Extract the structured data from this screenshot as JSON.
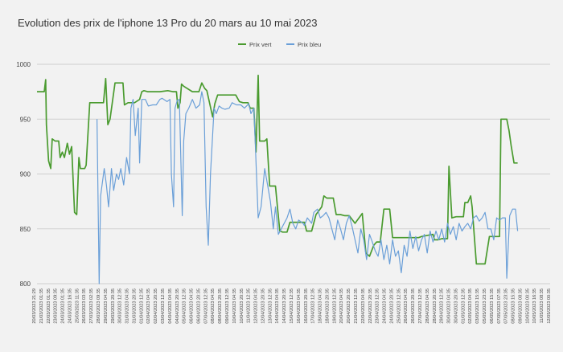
{
  "chart_data": {
    "type": "line",
    "title": "Evolution des prix de l'iphone 13 Pro du 20 mars au 10 mai 2023",
    "legend_position": "top-center",
    "grid": true,
    "ylim": [
      800,
      1000
    ],
    "y_ticks": [
      800,
      850,
      900,
      950,
      1000
    ],
    "x_ticks": [
      "20/03/2023 21:29",
      "21/03/2023 01:35",
      "22/03/2023 01:35",
      "23/03/2023 09:35",
      "24/03/2023 01:35",
      "24/03/2023 16:35",
      "25/03/2023 11:35",
      "26/03/2023 03:35",
      "27/03/2023 02:35",
      "28/03/2023 09:35",
      "29/03/2023 04:35",
      "29/03/2023 20:35",
      "30/03/2023 12:35",
      "31/03/2023 04:35",
      "31/03/2023 20:35",
      "01/04/2023 12:35",
      "02/04/2023 04:35",
      "02/04/2023 20:35",
      "03/04/2023 12:35",
      "04/04/2023 04:35",
      "04/04/2023 20:35",
      "05/04/2023 12:35",
      "06/04/2023 04:35",
      "06/04/2023 20:35",
      "07/04/2023 12:35",
      "08/04/2023 04:35",
      "08/04/2023 20:35",
      "09/04/2023 12:35",
      "10/04/2023 04:35",
      "10/04/2023 20:35",
      "11/04/2023 12:35",
      "12/04/2023 04:35",
      "12/04/2023 20:35",
      "13/04/2023 12:35",
      "14/04/2023 04:35",
      "14/04/2023 20:35",
      "15/04/2023 12:35",
      "16/04/2023 04:35",
      "16/04/2023 20:35",
      "17/04/2023 12:35",
      "18/04/2023 04:35",
      "18/04/2023 20:35",
      "19/04/2023 12:35",
      "20/04/2023 04:35",
      "20/04/2023 20:35",
      "21/04/2023 12:35",
      "22/04/2023 04:35",
      "22/04/2023 20:35",
      "23/04/2023 12:35",
      "24/04/2023 04:35",
      "24/04/2023 20:35",
      "25/04/2023 12:35",
      "26/04/2023 04:35",
      "26/04/2023 20:35",
      "27/04/2023 12:35",
      "28/04/2023 04:35",
      "28/04/2023 20:35",
      "29/04/2023 12:35",
      "30/04/2023 04:35",
      "30/04/2023 20:35",
      "01/05/2023 12:35",
      "02/05/2023 04:35",
      "03/05/2023 15:35",
      "05/05/2023 23:35",
      "06/05/2023 15:35",
      "07/05/2023 07:35",
      "07/05/2023 23:35",
      "08/05/2023 15:35",
      "09/05/2023 08:35",
      "10/05/2023 00:35",
      "10/05/2023 16:35",
      "11/05/2023 08:35",
      "12/05/2023 00:35"
    ],
    "x_count": 72,
    "series": [
      {
        "name": "Prix vert",
        "color": "#4a9b2f",
        "points": [
          [
            0,
            975
          ],
          [
            1,
            975
          ],
          [
            1.2,
            986
          ],
          [
            1.3,
            945
          ],
          [
            1.6,
            912
          ],
          [
            1.9,
            905
          ],
          [
            2.1,
            932
          ],
          [
            2.5,
            930
          ],
          [
            3,
            930
          ],
          [
            3.2,
            915
          ],
          [
            3.5,
            920
          ],
          [
            3.8,
            915
          ],
          [
            4.2,
            928
          ],
          [
            4.5,
            918
          ],
          [
            4.8,
            925
          ],
          [
            5.2,
            865
          ],
          [
            5.5,
            863
          ],
          [
            5.8,
            915
          ],
          [
            6.0,
            905
          ],
          [
            6.6,
            905
          ],
          [
            6.8,
            908
          ],
          [
            7.3,
            965
          ],
          [
            8.0,
            965
          ],
          [
            9.2,
            965
          ],
          [
            9.5,
            987
          ],
          [
            9.8,
            945
          ],
          [
            10.1,
            950
          ],
          [
            10.8,
            983
          ],
          [
            11.9,
            983
          ],
          [
            12.1,
            963
          ],
          [
            12.6,
            965
          ],
          [
            13.5,
            965
          ],
          [
            14.2,
            968
          ],
          [
            14.5,
            975
          ],
          [
            14.8,
            976
          ],
          [
            15.3,
            975
          ],
          [
            17.0,
            975
          ],
          [
            18.1,
            976
          ],
          [
            18.8,
            975
          ],
          [
            19.3,
            975
          ],
          [
            19.5,
            960
          ],
          [
            19.8,
            965
          ],
          [
            20.0,
            982
          ],
          [
            20.3,
            980
          ],
          [
            21.5,
            975
          ],
          [
            22.4,
            975
          ],
          [
            22.8,
            983
          ],
          [
            23.2,
            978
          ],
          [
            23.5,
            976
          ],
          [
            24.3,
            952
          ],
          [
            24.6,
            964
          ],
          [
            25.0,
            972
          ],
          [
            26.0,
            972
          ],
          [
            27.5,
            972
          ],
          [
            28.0,
            966
          ],
          [
            28.5,
            965
          ],
          [
            29.2,
            965
          ],
          [
            29.5,
            960
          ],
          [
            30.0,
            960
          ],
          [
            30.3,
            920
          ],
          [
            30.6,
            990
          ],
          [
            30.8,
            930
          ],
          [
            31.1,
            930
          ],
          [
            31.5,
            930
          ],
          [
            31.8,
            932
          ],
          [
            32.2,
            889
          ],
          [
            33.0,
            889
          ],
          [
            33.3,
            868
          ],
          [
            33.6,
            848
          ],
          [
            34.0,
            847
          ],
          [
            34.6,
            847
          ],
          [
            35.0,
            856
          ],
          [
            36.5,
            856
          ],
          [
            37.0,
            856
          ],
          [
            37.3,
            848
          ],
          [
            38.0,
            848
          ],
          [
            38.6,
            863
          ],
          [
            39.4,
            870
          ],
          [
            39.7,
            880
          ],
          [
            40.1,
            878
          ],
          [
            41.0,
            878
          ],
          [
            41.4,
            863
          ],
          [
            42.0,
            863
          ],
          [
            42.6,
            862
          ],
          [
            43.2,
            862
          ],
          [
            44.0,
            855
          ],
          [
            45.0,
            864
          ],
          [
            45.5,
            828
          ],
          [
            46.0,
            825
          ],
          [
            46.6,
            835
          ],
          [
            47.0,
            838
          ],
          [
            47.5,
            838
          ],
          [
            48.0,
            868
          ],
          [
            48.8,
            868
          ],
          [
            49.2,
            842
          ],
          [
            51.5,
            842
          ],
          [
            52.0,
            842
          ],
          [
            52.8,
            842
          ],
          [
            53.2,
            843
          ],
          [
            54.8,
            845
          ],
          [
            55.0,
            840
          ],
          [
            55.5,
            840
          ],
          [
            56.0,
            841
          ],
          [
            56.8,
            841
          ],
          [
            57.0,
            907
          ],
          [
            57.4,
            860
          ],
          [
            58.0,
            861
          ],
          [
            59.0,
            861
          ],
          [
            59.2,
            874
          ],
          [
            59.6,
            874
          ],
          [
            60.0,
            880
          ],
          [
            60.2,
            870
          ],
          [
            60.8,
            818
          ],
          [
            61.2,
            818
          ],
          [
            62.0,
            818
          ],
          [
            62.6,
            843
          ],
          [
            63.4,
            843
          ],
          [
            64.0,
            843
          ],
          [
            64.2,
            950
          ],
          [
            65.0,
            950
          ],
          [
            65.3,
            940
          ],
          [
            65.6,
            926
          ],
          [
            66.0,
            910
          ],
          [
            66.5,
            910
          ]
        ]
      },
      {
        "name": "Prix bleu",
        "color": "#6a9fd8",
        "points": [
          [
            8.3,
            950
          ],
          [
            8.6,
            800
          ],
          [
            8.8,
            880
          ],
          [
            9.3,
            905
          ],
          [
            9.6,
            890
          ],
          [
            9.9,
            870
          ],
          [
            10.3,
            905
          ],
          [
            10.6,
            885
          ],
          [
            11.0,
            900
          ],
          [
            11.3,
            895
          ],
          [
            11.6,
            905
          ],
          [
            12.0,
            890
          ],
          [
            12.4,
            915
          ],
          [
            12.8,
            900
          ],
          [
            13.0,
            960
          ],
          [
            13.3,
            968
          ],
          [
            13.6,
            935
          ],
          [
            14.0,
            960
          ],
          [
            14.2,
            910
          ],
          [
            14.5,
            968
          ],
          [
            15.0,
            968
          ],
          [
            15.4,
            962
          ],
          [
            16.0,
            963
          ],
          [
            16.5,
            963
          ],
          [
            17.0,
            968
          ],
          [
            17.3,
            969
          ],
          [
            18.0,
            966
          ],
          [
            18.4,
            968
          ],
          [
            18.6,
            900
          ],
          [
            18.9,
            870
          ],
          [
            19.1,
            960
          ],
          [
            19.4,
            967
          ],
          [
            19.7,
            968
          ],
          [
            20.1,
            862
          ],
          [
            20.3,
            930
          ],
          [
            20.6,
            955
          ],
          [
            21.0,
            960
          ],
          [
            21.5,
            968
          ],
          [
            22.0,
            960
          ],
          [
            22.5,
            963
          ],
          [
            22.8,
            975
          ],
          [
            23.1,
            965
          ],
          [
            23.4,
            870
          ],
          [
            23.7,
            835
          ],
          [
            24.0,
            900
          ],
          [
            24.5,
            960
          ],
          [
            24.8,
            955
          ],
          [
            25.2,
            962
          ],
          [
            25.6,
            960
          ],
          [
            26.0,
            959
          ],
          [
            26.6,
            960
          ],
          [
            27.0,
            965
          ],
          [
            27.6,
            963
          ],
          [
            28.2,
            963
          ],
          [
            28.7,
            960
          ],
          [
            29.3,
            964
          ],
          [
            29.6,
            955
          ],
          [
            30.0,
            960
          ],
          [
            30.2,
            928
          ],
          [
            30.6,
            860
          ],
          [
            31.0,
            870
          ],
          [
            31.5,
            905
          ],
          [
            31.9,
            890
          ],
          [
            32.3,
            875
          ],
          [
            32.7,
            850
          ],
          [
            33.0,
            870
          ],
          [
            33.4,
            845
          ],
          [
            33.8,
            850
          ],
          [
            34.2,
            855
          ],
          [
            34.6,
            860
          ],
          [
            35.0,
            868
          ],
          [
            35.4,
            855
          ],
          [
            35.8,
            850
          ],
          [
            36.2,
            858
          ],
          [
            36.8,
            855
          ],
          [
            37.0,
            853
          ],
          [
            37.4,
            860
          ],
          [
            38.0,
            855
          ],
          [
            38.3,
            865
          ],
          [
            38.8,
            868
          ],
          [
            39.2,
            860
          ],
          [
            39.6,
            862
          ],
          [
            40.0,
            865
          ],
          [
            40.4,
            860
          ],
          [
            40.8,
            850
          ],
          [
            41.2,
            840
          ],
          [
            41.6,
            858
          ],
          [
            42.0,
            850
          ],
          [
            42.4,
            840
          ],
          [
            42.8,
            855
          ],
          [
            43.2,
            862
          ],
          [
            43.6,
            852
          ],
          [
            44.0,
            840
          ],
          [
            44.4,
            828
          ],
          [
            44.8,
            850
          ],
          [
            45.2,
            840
          ],
          [
            45.6,
            822
          ],
          [
            46.0,
            845
          ],
          [
            46.4,
            838
          ],
          [
            46.8,
            830
          ],
          [
            47.2,
            825
          ],
          [
            47.6,
            840
          ],
          [
            48.0,
            822
          ],
          [
            48.4,
            835
          ],
          [
            48.8,
            818
          ],
          [
            49.2,
            840
          ],
          [
            49.6,
            825
          ],
          [
            50.0,
            830
          ],
          [
            50.4,
            810
          ],
          [
            50.8,
            835
          ],
          [
            51.2,
            825
          ],
          [
            51.6,
            848
          ],
          [
            52.0,
            832
          ],
          [
            52.4,
            843
          ],
          [
            52.8,
            830
          ],
          [
            53.2,
            840
          ],
          [
            53.6,
            845
          ],
          [
            54.0,
            828
          ],
          [
            54.4,
            848
          ],
          [
            54.8,
            838
          ],
          [
            55.2,
            848
          ],
          [
            55.6,
            840
          ],
          [
            56.0,
            850
          ],
          [
            56.4,
            838
          ],
          [
            56.8,
            855
          ],
          [
            57.2,
            845
          ],
          [
            57.6,
            852
          ],
          [
            58.0,
            840
          ],
          [
            58.4,
            855
          ],
          [
            58.8,
            848
          ],
          [
            59.2,
            852
          ],
          [
            59.6,
            855
          ],
          [
            60.0,
            850
          ],
          [
            60.4,
            860
          ],
          [
            60.8,
            862
          ],
          [
            61.2,
            857
          ],
          [
            61.6,
            860
          ],
          [
            62.0,
            865
          ],
          [
            62.4,
            850
          ],
          [
            62.8,
            850
          ],
          [
            63.2,
            840
          ],
          [
            63.6,
            860
          ],
          [
            64.0,
            858
          ],
          [
            64.4,
            860
          ],
          [
            64.8,
            860
          ],
          [
            65.0,
            805
          ],
          [
            65.4,
            862
          ],
          [
            65.8,
            868
          ],
          [
            66.2,
            868
          ],
          [
            66.5,
            848
          ]
        ]
      }
    ]
  }
}
